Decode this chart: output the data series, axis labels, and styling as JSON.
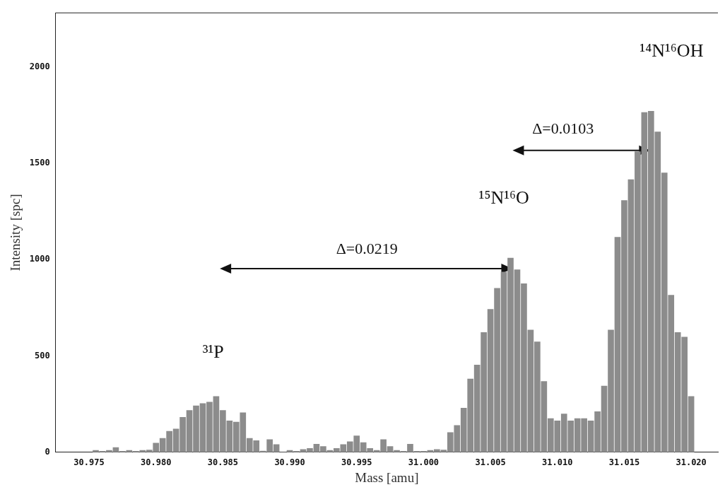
{
  "chart_data": {
    "type": "bar",
    "xlabel": "Mass [amu]",
    "ylabel": "Intensity [spc]",
    "x": [
      30.9755,
      30.976,
      30.9765,
      30.977,
      30.9775,
      30.978,
      30.9785,
      30.979,
      30.9795,
      30.98,
      30.9805,
      30.981,
      30.9815,
      30.982,
      30.9825,
      30.983,
      30.9835,
      30.984,
      30.9845,
      30.985,
      30.9855,
      30.986,
      30.9865,
      30.987,
      30.9875,
      30.988,
      30.9885,
      30.989,
      30.9895,
      30.99,
      30.9905,
      30.991,
      30.9915,
      30.992,
      30.9925,
      30.993,
      30.9935,
      30.994,
      30.9945,
      30.995,
      30.9955,
      30.996,
      30.9965,
      30.997,
      30.9975,
      30.998,
      30.9985,
      30.999,
      30.9995,
      31.0,
      31.0005,
      31.001,
      31.0015,
      31.002,
      31.0025,
      31.003,
      31.0035,
      31.004,
      31.0045,
      31.005,
      31.0055,
      31.006,
      31.0065,
      31.007,
      31.0075,
      31.008,
      31.0085,
      31.009,
      31.0095,
      31.01,
      31.0105,
      31.011,
      31.0115,
      31.012,
      31.0125,
      31.013,
      31.0135,
      31.014,
      31.0145,
      31.015,
      31.0155,
      31.016,
      31.0165,
      31.017,
      31.0175,
      31.018,
      31.0185,
      31.019,
      31.0195,
      31.02
    ],
    "values": [
      10,
      5,
      10,
      25,
      5,
      10,
      5,
      10,
      12,
      48,
      72,
      109,
      121,
      181,
      217,
      241,
      253,
      260,
      290,
      217,
      163,
      157,
      205,
      72,
      60,
      6,
      66,
      40,
      0,
      10,
      5,
      15,
      20,
      42,
      30,
      10,
      20,
      40,
      55,
      85,
      50,
      20,
      10,
      66,
      30,
      10,
      5,
      42,
      5,
      5,
      10,
      15,
      12,
      103,
      139,
      229,
      380,
      453,
      622,
      742,
      851,
      935,
      1008,
      947,
      875,
      634,
      573,
      368,
      175,
      163,
      199,
      163,
      175,
      175,
      163,
      211,
      344,
      634,
      1116,
      1307,
      1415,
      1560,
      1763,
      1770,
      1662,
      1450,
      815,
      622,
      598,
      290
    ],
    "color": "#8c8c8c",
    "xlim": [
      30.9725,
      31.022
    ],
    "xticks": [
      30.975,
      {
        "value": 30.98,
        "label": "30.980"
      },
      30.985,
      {
        "value": 30.99,
        "label": "30.990"
      },
      30.995,
      {
        "value": 31.0,
        "label": "31.000"
      },
      31.005,
      {
        "value": 31.01,
        "label": "31.010"
      },
      31.015,
      {
        "value": 31.02,
        "label": "31.020"
      }
    ],
    "ylim": [
      0,
      2280
    ],
    "yticks": [
      0,
      500,
      1000,
      1500,
      2000
    ],
    "grid": false,
    "legend": false,
    "annotations": [
      "³¹P",
      "¹⁵N¹⁶O",
      "¹⁴N¹⁶OH",
      "Δ=0.0219",
      "Δ=0.0103"
    ]
  }
}
